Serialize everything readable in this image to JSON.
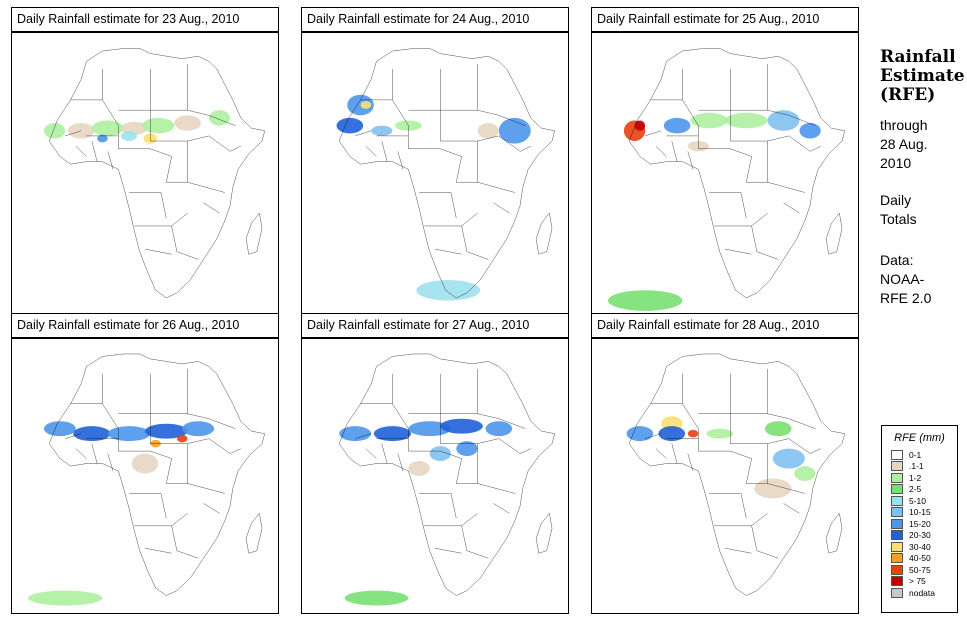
{
  "panels": [
    {
      "title": "Daily Rainfall estimate for  23 Aug., 2010",
      "rain_level": "moderate"
    },
    {
      "title": "Daily Rainfall estimate for  24 Aug., 2010",
      "rain_level": "light"
    },
    {
      "title": "Daily Rainfall estimate for  25 Aug., 2010",
      "rain_level": "moderate"
    },
    {
      "title": "Daily Rainfall estimate for  26 Aug., 2010",
      "rain_level": "heavy"
    },
    {
      "title": "Daily Rainfall estimate for  27 Aug., 2010",
      "rain_level": "heavy"
    },
    {
      "title": "Daily Rainfall estimate for  28 Aug., 2010",
      "rain_level": "moderate"
    }
  ],
  "sidebar": {
    "title_line1": "Rainfall",
    "title_line2": "Estimate",
    "title_line3": "(RFE)",
    "through_label": "through",
    "through_date_line1": "28 Aug.",
    "through_date_line2": "2010",
    "daily_line1": "Daily",
    "daily_line2": "Totals",
    "data_label": "Data:",
    "data_source_line1": "NOAA-",
    "data_source_line2": "RFE 2.0"
  },
  "legend": {
    "title": "RFE (mm)",
    "items": [
      {
        "label": "0-1",
        "color": "#ffffff"
      },
      {
        "label": ".1-1",
        "color": "#e6d6c0"
      },
      {
        "label": "1-2",
        "color": "#aef0a0"
      },
      {
        "label": "2-5",
        "color": "#78e072"
      },
      {
        "label": "5-10",
        "color": "#9ee0ee"
      },
      {
        "label": "10-15",
        "color": "#80c0f0"
      },
      {
        "label": "15-20",
        "color": "#4c96ec"
      },
      {
        "label": "20-30",
        "color": "#2060d8"
      },
      {
        "label": "30-40",
        "color": "#fae070"
      },
      {
        "label": "40-50",
        "color": "#f8a020"
      },
      {
        "label": "50-75",
        "color": "#e84010"
      },
      {
        "label": "> 75",
        "color": "#c00000"
      },
      {
        "label": "nodata",
        "color": "#c8c8c8"
      }
    ]
  }
}
